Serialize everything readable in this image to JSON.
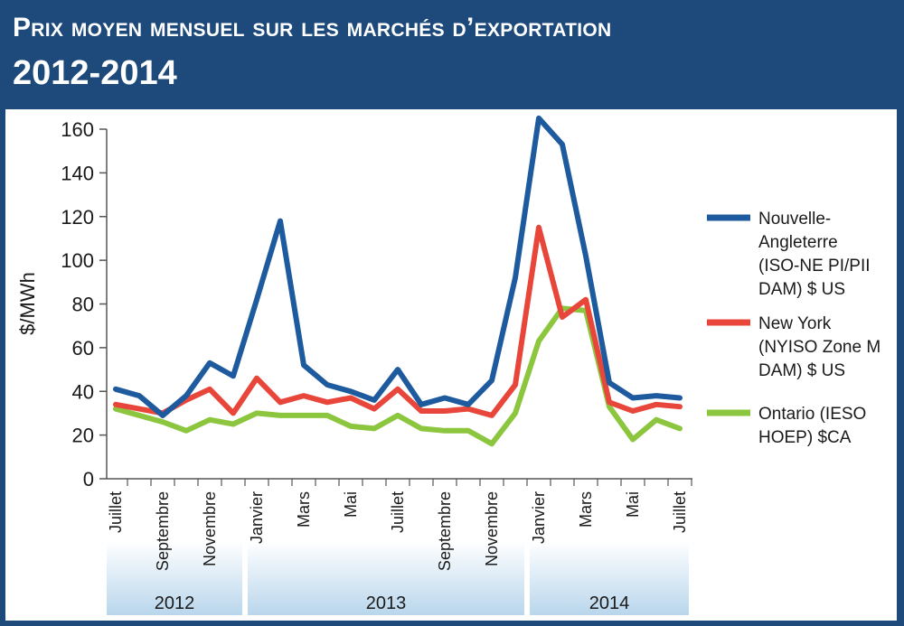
{
  "header": {
    "title": "Prix moyen mensuel sur les marchés d’exportation",
    "subtitle": "2012-2014"
  },
  "chart_data": {
    "type": "line",
    "title": "Prix moyen mensuel sur les marchés d’exportation",
    "subtitle": "2012-2014",
    "ylabel": "$/MWh",
    "xlabel": "",
    "ylim": [
      0,
      160
    ],
    "yticks": [
      0,
      20,
      40,
      60,
      80,
      100,
      120,
      140,
      160
    ],
    "grid": "none",
    "legend_position": "right",
    "months": [
      "2012-07",
      "2012-08",
      "2012-09",
      "2012-10",
      "2012-11",
      "2012-12",
      "2013-01",
      "2013-02",
      "2013-03",
      "2013-04",
      "2013-05",
      "2013-06",
      "2013-07",
      "2013-08",
      "2013-09",
      "2013-10",
      "2013-11",
      "2013-12",
      "2014-01",
      "2014-02",
      "2014-03",
      "2014-04",
      "2014-05",
      "2014-06",
      "2014-07"
    ],
    "tick_labels": [
      {
        "index": 0,
        "label": "Juillet"
      },
      {
        "index": 2,
        "label": "Septembre"
      },
      {
        "index": 4,
        "label": "Novembre"
      },
      {
        "index": 6,
        "label": "Janvier"
      },
      {
        "index": 8,
        "label": "Mars"
      },
      {
        "index": 10,
        "label": "Mai"
      },
      {
        "index": 12,
        "label": "Juillet"
      },
      {
        "index": 14,
        "label": "Septembre"
      },
      {
        "index": 16,
        "label": "Novembre"
      },
      {
        "index": 18,
        "label": "Janvier"
      },
      {
        "index": 20,
        "label": "Mars"
      },
      {
        "index": 22,
        "label": "Mai"
      },
      {
        "index": 24,
        "label": "Juillet"
      }
    ],
    "year_groups": [
      {
        "label": "2012",
        "start": 0,
        "end": 5
      },
      {
        "label": "2013",
        "start": 6,
        "end": 17
      },
      {
        "label": "2014",
        "start": 18,
        "end": 24
      }
    ],
    "series": [
      {
        "name": "Nouvelle-Angleterre (ISO-NE PI/PII DAM) $ US",
        "legend_lines": [
          "Nouvelle-",
          "Angleterre",
          "(ISO-NE PI/PII",
          "DAM) $ US"
        ],
        "color": "#1d5b9e",
        "values": [
          41,
          38,
          29,
          38,
          53,
          47,
          82,
          118,
          52,
          43,
          40,
          36,
          50,
          34,
          37,
          34,
          45,
          92,
          165,
          153,
          102,
          44,
          37,
          38,
          37
        ]
      },
      {
        "name": "New York (NYISO Zone M DAM) $ US",
        "legend_lines": [
          "New York",
          "(NYISO Zone M",
          "DAM) $ US"
        ],
        "color": "#e8463a",
        "values": [
          34,
          32,
          30,
          36,
          41,
          30,
          46,
          35,
          38,
          35,
          37,
          32,
          41,
          31,
          31,
          32,
          29,
          43,
          115,
          74,
          82,
          35,
          31,
          34,
          33
        ]
      },
      {
        "name": "Ontario (IESO HOEP) $CA",
        "legend_lines": [
          "Ontario (IESO",
          "HOEP) $CA"
        ],
        "color": "#8cc63f",
        "values": [
          32,
          29,
          26,
          22,
          27,
          25,
          30,
          29,
          29,
          29,
          24,
          23,
          29,
          23,
          22,
          22,
          16,
          30,
          63,
          78,
          77,
          33,
          18,
          27,
          23
        ]
      }
    ]
  }
}
